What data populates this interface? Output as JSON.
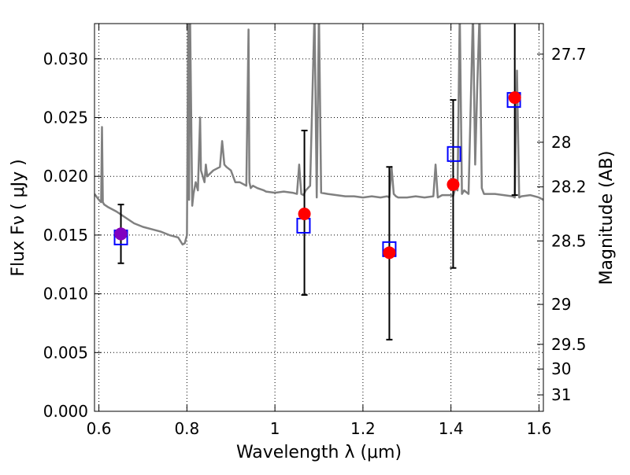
{
  "chart_data": {
    "type": "scatter",
    "xlabel": "Wavelength  λ (μm)",
    "ylabel_left": "Flux  Fν  ( μJy )",
    "ylabel_right": "Magnitude (AB)",
    "xlim": [
      0.59,
      1.61
    ],
    "ylim": [
      0.0,
      0.033
    ],
    "grid": true,
    "x_ticks": [
      {
        "value": 0.6,
        "label": "0.6"
      },
      {
        "value": 0.8,
        "label": "0.8"
      },
      {
        "value": 1.0,
        "label": "1"
      },
      {
        "value": 1.2,
        "label": "1.2"
      },
      {
        "value": 1.4,
        "label": "1.4"
      },
      {
        "value": 1.6,
        "label": "1.6"
      }
    ],
    "y_ticks": [
      {
        "value": 0.0,
        "label": "0.000"
      },
      {
        "value": 0.005,
        "label": "0.005"
      },
      {
        "value": 0.01,
        "label": "0.010"
      },
      {
        "value": 0.015,
        "label": "0.015"
      },
      {
        "value": 0.02,
        "label": "0.020"
      },
      {
        "value": 0.025,
        "label": "0.025"
      },
      {
        "value": 0.03,
        "label": "0.030"
      }
    ],
    "right_ticks": [
      {
        "flux": 0.0304,
        "label": "27.7"
      },
      {
        "flux": 0.0229,
        "label": "28"
      },
      {
        "flux": 0.0191,
        "label": "28.2"
      },
      {
        "flux": 0.0145,
        "label": "28.5"
      },
      {
        "flux": 0.0091,
        "label": "29"
      },
      {
        "flux": 0.0057,
        "label": "29.5"
      },
      {
        "flux": 0.0036,
        "label": "30"
      },
      {
        "flux": 0.0014,
        "label": "31"
      }
    ],
    "series": [
      {
        "kind": "line",
        "color": "#808080",
        "x": [
          0.59,
          0.6,
          0.605,
          0.607,
          0.609,
          0.612,
          0.62,
          0.64,
          0.66,
          0.68,
          0.7,
          0.72,
          0.74,
          0.76,
          0.78,
          0.79,
          0.795,
          0.8,
          0.803,
          0.805,
          0.807,
          0.812,
          0.815,
          0.82,
          0.825,
          0.83,
          0.832,
          0.84,
          0.843,
          0.846,
          0.86,
          0.875,
          0.88,
          0.885,
          0.89,
          0.9,
          0.91,
          0.92,
          0.93,
          0.935,
          0.94,
          0.942,
          0.945,
          0.95,
          0.96,
          0.975,
          0.98,
          1.0,
          1.02,
          1.04,
          1.05,
          1.055,
          1.06,
          1.065,
          1.07,
          1.08,
          1.09,
          1.095,
          1.1,
          1.105,
          1.12,
          1.14,
          1.16,
          1.18,
          1.2,
          1.22,
          1.24,
          1.255,
          1.26,
          1.265,
          1.27,
          1.275,
          1.28,
          1.3,
          1.32,
          1.34,
          1.36,
          1.365,
          1.37,
          1.375,
          1.38,
          1.4,
          1.405,
          1.41,
          1.415,
          1.42,
          1.425,
          1.43,
          1.44,
          1.45,
          1.455,
          1.46,
          1.465,
          1.47,
          1.475,
          1.5,
          1.52,
          1.54,
          1.545,
          1.55,
          1.555,
          1.56,
          1.58,
          1.6,
          1.61
        ],
        "y": [
          0.0185,
          0.018,
          0.0178,
          0.0242,
          0.0178,
          0.0176,
          0.0174,
          0.017,
          0.0165,
          0.016,
          0.0157,
          0.0155,
          0.0153,
          0.015,
          0.0148,
          0.0142,
          0.0143,
          0.015,
          0.034,
          0.018,
          0.034,
          0.0175,
          0.0185,
          0.0195,
          0.0188,
          0.025,
          0.0205,
          0.0195,
          0.021,
          0.02,
          0.0205,
          0.0208,
          0.023,
          0.021,
          0.0208,
          0.0205,
          0.0195,
          0.0195,
          0.0193,
          0.0192,
          0.0325,
          0.0195,
          0.019,
          0.0192,
          0.019,
          0.0188,
          0.0187,
          0.0186,
          0.0187,
          0.0186,
          0.0185,
          0.021,
          0.0185,
          0.0184,
          0.0188,
          0.0192,
          0.034,
          0.0182,
          0.034,
          0.0186,
          0.0185,
          0.0184,
          0.0183,
          0.0183,
          0.0182,
          0.0183,
          0.0182,
          0.0183,
          0.0182,
          0.0208,
          0.0185,
          0.0183,
          0.0182,
          0.0182,
          0.0183,
          0.0182,
          0.0183,
          0.021,
          0.0182,
          0.0183,
          0.0184,
          0.0184,
          0.0183,
          0.019,
          0.0188,
          0.034,
          0.0185,
          0.0188,
          0.0185,
          0.034,
          0.021,
          0.028,
          0.034,
          0.019,
          0.0185,
          0.0185,
          0.0184,
          0.0183,
          0.0182,
          0.029,
          0.0182,
          0.0183,
          0.0184,
          0.0182,
          0.018
        ]
      },
      {
        "kind": "errorbar",
        "color": "#000000",
        "points": [
          {
            "x": 0.65,
            "low": 0.0126,
            "high": 0.0176
          },
          {
            "x": 1.067,
            "low": 0.0099,
            "high": 0.0239
          },
          {
            "x": 1.26,
            "low": 0.0061,
            "high": 0.0208
          },
          {
            "x": 1.405,
            "low": 0.0122,
            "high": 0.0265
          },
          {
            "x": 1.545,
            "low": 0.0184,
            "high": 0.0335
          }
        ]
      },
      {
        "kind": "open-square",
        "color": "#0000ff",
        "x": [
          0.65,
          1.065,
          1.26,
          1.407,
          1.543
        ],
        "y": [
          0.0148,
          0.0158,
          0.0138,
          0.0219,
          0.0265
        ]
      },
      {
        "kind": "filled-circle",
        "color": "#ff0000",
        "x": [
          0.65,
          1.067,
          1.26,
          1.405,
          1.545
        ],
        "y": [
          0.0151,
          0.0168,
          0.0135,
          0.0193,
          0.0267
        ]
      },
      {
        "kind": "filled-circle",
        "color": "#8000c0",
        "x": [
          0.65
        ],
        "y": [
          0.0151
        ]
      }
    ]
  }
}
